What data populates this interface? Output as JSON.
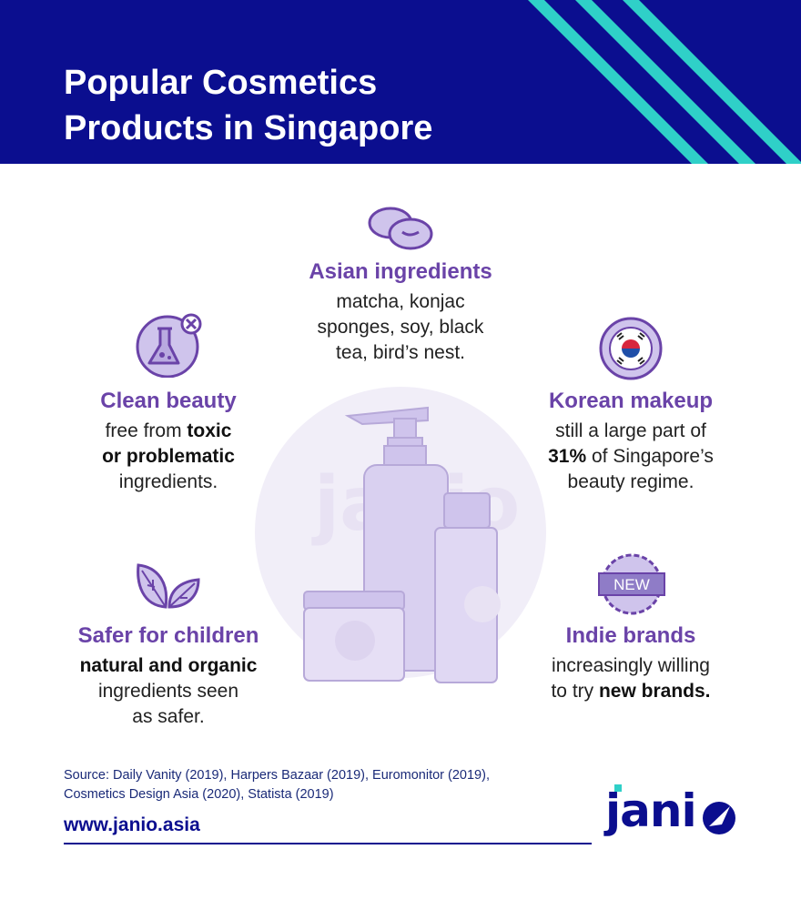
{
  "header": {
    "title_line1": "Popular Cosmetics",
    "title_line2": "Products in Singapore"
  },
  "colors": {
    "header_bg": "#0b0e8f",
    "stripe": "#2fd0c8",
    "heading_purple": "#6a43a8",
    "icon_fill": "#cfc4ec",
    "icon_stroke": "#6a43a8",
    "text": "#222222"
  },
  "blocks": {
    "asian": {
      "icon": "beans-icon",
      "heading": "Asian ingredients",
      "line1": "matcha, konjac",
      "line2": "sponges, soy, black",
      "line3": "tea, bird’s nest."
    },
    "clean": {
      "icon": "flask-x-icon",
      "heading": "Clean beauty",
      "line1_pre": "free from ",
      "line1_bold": "toxic",
      "line2_bold": "or problematic",
      "line3": "ingredients."
    },
    "korean": {
      "icon": "korean-flag-icon",
      "heading": "Korean makeup",
      "line1": "still a large part of",
      "line2_bold": "31%",
      "line2_post": " of Singapore’s",
      "line3": "beauty regime."
    },
    "children": {
      "icon": "leaves-icon",
      "heading": "Safer for children",
      "line1_bold": "natural and organic",
      "line2": "ingredients seen",
      "line3": "as safer."
    },
    "indie": {
      "icon": "new-badge-icon",
      "badge_text": "NEW",
      "heading": "Indie brands",
      "line1": "increasingly willing",
      "line2_pre": "to try ",
      "line2_bold": "new brands."
    }
  },
  "watermark": "janio",
  "footer": {
    "source_line1": "Source: Daily Vanity (2019), Harpers Bazaar (2019), Euromonitor (2019),",
    "source_line2": "Cosmetics Design Asia (2020), Statista (2019)",
    "website": "www.janio.asia",
    "logo_text": "jani"
  }
}
